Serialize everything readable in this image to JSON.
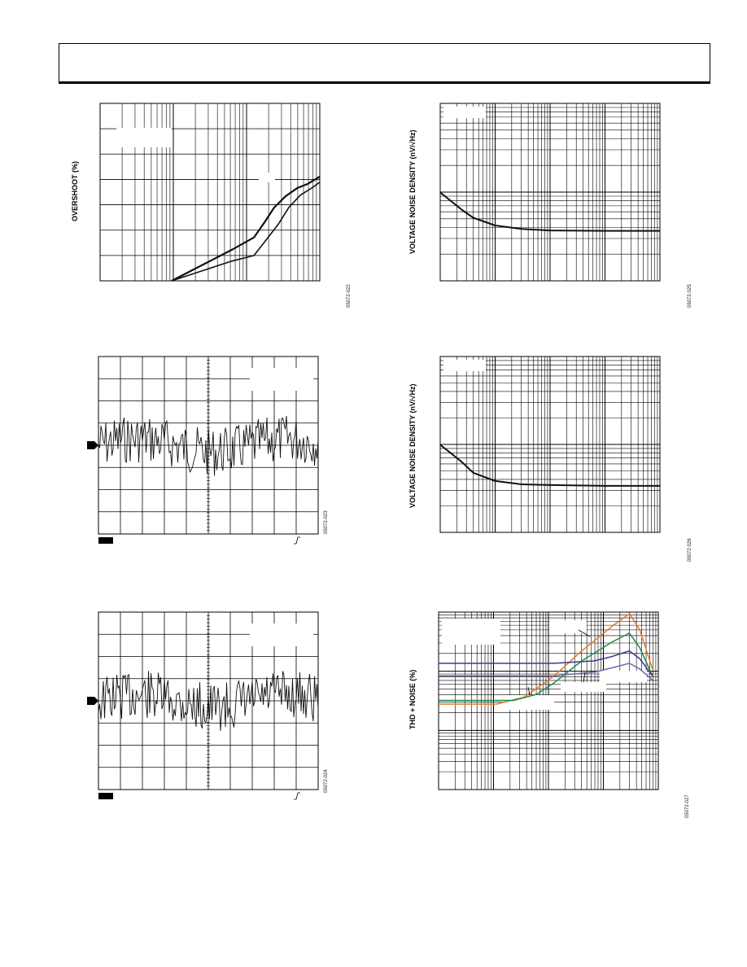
{
  "page": {
    "header": ""
  },
  "chart_data": [
    {
      "id": "overshoot",
      "type": "line",
      "title": "",
      "xlabel": "",
      "ylabel": "OVERSHOOT (%)",
      "xscale": "log",
      "grid": true,
      "figure_number": "05072-022",
      "series": [
        {
          "name": "",
          "color": "#111111",
          "points": [
            [
              1.0,
              0
            ],
            [
              3.0,
              0.55
            ],
            [
              4.5,
              0.77
            ],
            [
              5.5,
              1.05
            ],
            [
              6.5,
              1.3
            ],
            [
              8.0,
              1.5
            ],
            [
              10.0,
              1.65
            ],
            [
              12.0,
              1.72
            ],
            [
              15.0,
              1.85
            ]
          ]
        },
        {
          "name": "",
          "color": "#111111",
          "points": [
            [
              1.0,
              0
            ],
            [
              3.0,
              0.35
            ],
            [
              4.5,
              0.45
            ],
            [
              5.5,
              0.7
            ],
            [
              7.0,
              1.0
            ],
            [
              8.5,
              1.3
            ],
            [
              10.5,
              1.52
            ],
            [
              13.0,
              1.65
            ],
            [
              15.0,
              1.75
            ]
          ]
        }
      ]
    },
    {
      "id": "noise1",
      "type": "line",
      "title": "",
      "figure_number": "05072-023",
      "grid": true,
      "series": [
        {
          "name": "",
          "color": "#111111"
        }
      ]
    },
    {
      "id": "noise2",
      "type": "line",
      "title": "",
      "figure_number": "05072-024",
      "grid": true,
      "series": [
        {
          "name": "",
          "color": "#111111"
        }
      ]
    },
    {
      "id": "vnoise1",
      "type": "line",
      "title": "",
      "ylabel": "VOLTAGE NOISE DENSITY (nV/√Hz)",
      "xscale": "log",
      "yscale": "log",
      "grid": true,
      "figure_number": "05072-025",
      "series": [
        {
          "name": "",
          "color": "#111111",
          "points": [
            [
              10,
              28
            ],
            [
              25,
              19
            ],
            [
              40,
              16
            ],
            [
              100,
              13.5
            ],
            [
              300,
              12.5
            ],
            [
              1000,
              12.1
            ],
            [
              10000,
              12
            ],
            [
              100000,
              12
            ]
          ]
        }
      ]
    },
    {
      "id": "vnoise2",
      "type": "line",
      "title": "",
      "ylabel": "VOLTAGE NOISE DENSITY (nV/√Hz)",
      "xscale": "log",
      "yscale": "log",
      "grid": true,
      "figure_number": "05072-026",
      "series": [
        {
          "name": "",
          "color": "#111111",
          "points": [
            [
              10,
              28
            ],
            [
              25,
              19
            ],
            [
              40,
              15
            ],
            [
              100,
              12.5
            ],
            [
              300,
              11.6
            ],
            [
              1000,
              11.4
            ],
            [
              10000,
              11.2
            ],
            [
              100000,
              11.2
            ]
          ]
        }
      ]
    },
    {
      "id": "thd",
      "type": "line",
      "title": "",
      "ylabel": "THD + NOISE (%)",
      "xscale": "log",
      "yscale": "log",
      "grid": true,
      "figure_number": "05072-027",
      "series": [
        {
          "name": "",
          "color": "#e87722",
          "points": [
            [
              10,
              0.0016
            ],
            [
              100,
              0.0016
            ],
            [
              300,
              0.002
            ],
            [
              1000,
              0.004
            ],
            [
              3000,
              0.009
            ],
            [
              10000,
              0.02
            ],
            [
              20000,
              0.03
            ],
            [
              30000,
              0.018
            ],
            [
              50000,
              0.005
            ]
          ]
        },
        {
          "name": "",
          "color": "#1e8a4a",
          "points": [
            [
              10,
              0.0018
            ],
            [
              200,
              0.0018
            ],
            [
              500,
              0.0022
            ],
            [
              1000,
              0.0032
            ],
            [
              3000,
              0.0065
            ],
            [
              10000,
              0.012
            ],
            [
              20000,
              0.016
            ],
            [
              30000,
              0.01
            ],
            [
              50000,
              0.004
            ]
          ]
        },
        {
          "name": "",
          "color": "#3a3a8c",
          "points": [
            [
              10,
              0.006
            ],
            [
              1000,
              0.006
            ],
            [
              5000,
              0.0065
            ],
            [
              10000,
              0.0075
            ],
            [
              20000,
              0.009
            ],
            [
              30000,
              0.007
            ],
            [
              50000,
              0.004
            ]
          ]
        },
        {
          "name": "",
          "color": "#6a6ab0",
          "points": [
            [
              10,
              0.004
            ],
            [
              1000,
              0.004
            ],
            [
              5000,
              0.0045
            ],
            [
              10000,
              0.0052
            ],
            [
              20000,
              0.006
            ],
            [
              30000,
              0.005
            ],
            [
              50000,
              0.0035
            ]
          ]
        }
      ]
    }
  ]
}
